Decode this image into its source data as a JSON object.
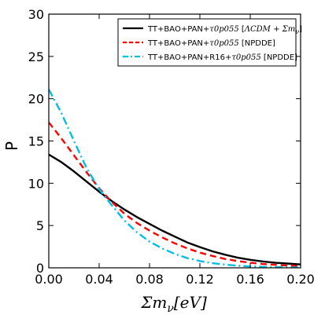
{
  "chart_data": {
    "type": "line",
    "xlabel": "Σm_ν[eV]",
    "ylabel": "P",
    "xlim": [
      0.0,
      0.2
    ],
    "ylim": [
      0,
      30
    ],
    "xticks": [
      "0.00",
      "0.04",
      "0.08",
      "0.12",
      "0.16",
      "0.20"
    ],
    "yticks": [
      "0",
      "5",
      "10",
      "15",
      "20",
      "25",
      "30"
    ],
    "grid": false,
    "legend_position": "top-right",
    "series": [
      {
        "name_parts": [
          "TT+BAO+PAN+",
          "τ0p055",
          " [",
          "ΛCDM + Σm",
          "ν",
          "]"
        ],
        "color": "#000000",
        "style": "solid",
        "x": [
          0.0,
          0.01,
          0.02,
          0.03,
          0.04,
          0.05,
          0.06,
          0.07,
          0.08,
          0.09,
          0.1,
          0.11,
          0.12,
          0.13,
          0.14,
          0.15,
          0.16,
          0.17,
          0.18,
          0.19,
          0.2
        ],
        "values": [
          13.4,
          12.5,
          11.4,
          10.2,
          9.0,
          7.9,
          6.9,
          6.0,
          5.2,
          4.4,
          3.7,
          3.0,
          2.45,
          1.95,
          1.55,
          1.2,
          0.95,
          0.75,
          0.6,
          0.5,
          0.4
        ]
      },
      {
        "name_parts": [
          "TT+BAO+PAN+",
          "τ0p055",
          " [NPDDE]"
        ],
        "color": "#ff0000",
        "style": "dashed",
        "x": [
          0.0,
          0.01,
          0.02,
          0.03,
          0.04,
          0.05,
          0.06,
          0.07,
          0.08,
          0.09,
          0.1,
          0.11,
          0.12,
          0.13,
          0.14,
          0.15,
          0.16,
          0.17,
          0.18,
          0.19,
          0.2
        ],
        "values": [
          17.2,
          15.3,
          13.3,
          11.3,
          9.4,
          7.8,
          6.4,
          5.3,
          4.4,
          3.6,
          2.9,
          2.3,
          1.8,
          1.4,
          1.05,
          0.8,
          0.6,
          0.45,
          0.35,
          0.25,
          0.2
        ]
      },
      {
        "name_parts": [
          "TT+BAO+PAN+R16+",
          "τ0p055",
          " [NPDDE]"
        ],
        "color": "#00bfe0",
        "style": "dashdot",
        "x": [
          0.0,
          0.01,
          0.02,
          0.03,
          0.04,
          0.05,
          0.06,
          0.07,
          0.08,
          0.09,
          0.1,
          0.11,
          0.12,
          0.13,
          0.14,
          0.15,
          0.16,
          0.17,
          0.18,
          0.19,
          0.2
        ],
        "values": [
          21.1,
          18.3,
          15.0,
          11.8,
          9.3,
          7.4,
          5.6,
          4.2,
          3.1,
          2.3,
          1.65,
          1.15,
          0.8,
          0.55,
          0.38,
          0.25,
          0.17,
          0.11,
          0.07,
          0.05,
          0.03
        ]
      }
    ]
  }
}
